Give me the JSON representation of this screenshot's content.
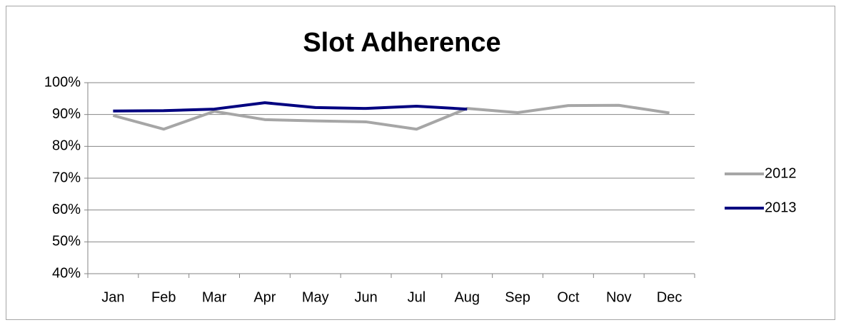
{
  "chart_data": {
    "type": "line",
    "title": "Slot Adherence",
    "categories": [
      "Jan",
      "Feb",
      "Mar",
      "Apr",
      "May",
      "Jun",
      "Jul",
      "Aug",
      "Sep",
      "Oct",
      "Nov",
      "Dec"
    ],
    "series": [
      {
        "name": "2012",
        "color": "#a6a6a6",
        "values": [
          89.7,
          85.4,
          91.0,
          88.4,
          88.0,
          87.7,
          85.4,
          91.9,
          90.6,
          92.8,
          92.9,
          90.5
        ]
      },
      {
        "name": "2013",
        "color": "#000080",
        "values": [
          91.1,
          91.2,
          91.7,
          93.7,
          92.2,
          91.9,
          92.6,
          91.7,
          null,
          null,
          null,
          null
        ]
      }
    ],
    "ylim": [
      40,
      100
    ],
    "yticks": [
      {
        "value": 40,
        "label": "40%"
      },
      {
        "value": 50,
        "label": "50%"
      },
      {
        "value": 60,
        "label": "60%"
      },
      {
        "value": 70,
        "label": "70%"
      },
      {
        "value": 80,
        "label": "80%"
      },
      {
        "value": 90,
        "label": "90%"
      },
      {
        "value": 100,
        "label": "100%"
      }
    ],
    "grid": true,
    "legend": "right"
  }
}
